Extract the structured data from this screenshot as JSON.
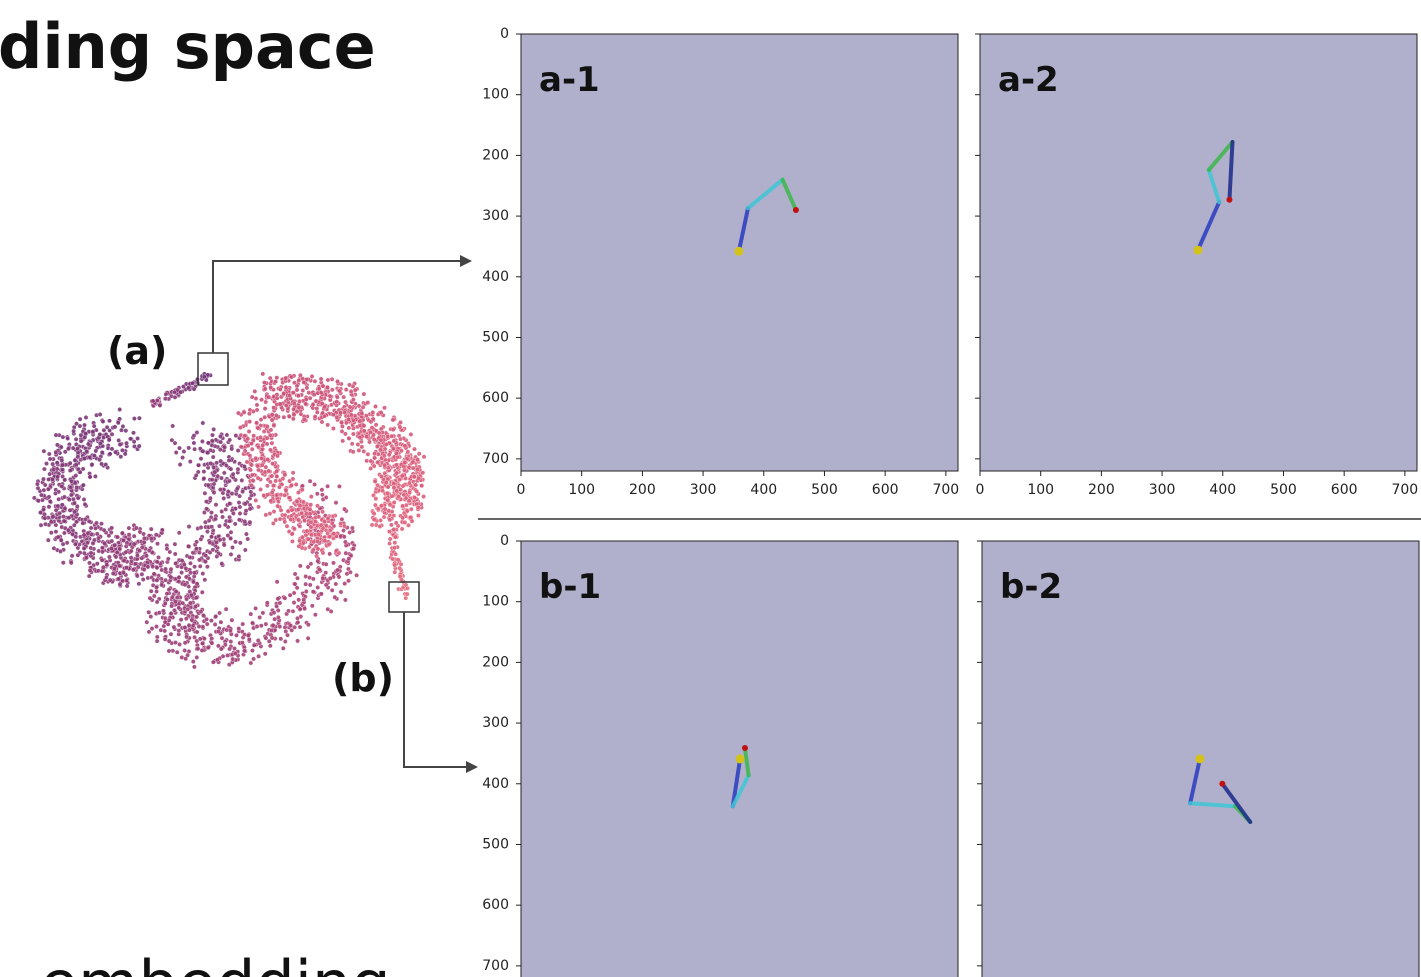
{
  "title": "ding space",
  "footer": "embedding",
  "embedding": {
    "label_a": "(a)",
    "label_b": "(b)"
  },
  "axis": {
    "lim": [
      0,
      720
    ],
    "ticks": [
      0,
      100,
      200,
      300,
      400,
      500,
      600,
      700
    ]
  },
  "panels": [
    {
      "label": "a-1",
      "joints": [
        [
          359,
          358
        ],
        [
          374,
          287
        ],
        [
          431,
          240
        ],
        [
          453,
          290
        ]
      ]
    },
    {
      "label": "a-2",
      "joints": [
        [
          359,
          356
        ],
        [
          394,
          277
        ],
        [
          377,
          224
        ],
        [
          416,
          178
        ],
        [
          411,
          273
        ]
      ]
    },
    {
      "label": "b-1",
      "joints": [
        [
          361,
          359
        ],
        [
          349,
          437
        ],
        [
          375,
          386
        ],
        [
          369,
          341
        ]
      ]
    },
    {
      "label": "b-2",
      "joints": [
        [
          359,
          359
        ],
        [
          343,
          432
        ],
        [
          417,
          437
        ],
        [
          442,
          463
        ],
        [
          396,
          400
        ]
      ]
    }
  ]
}
